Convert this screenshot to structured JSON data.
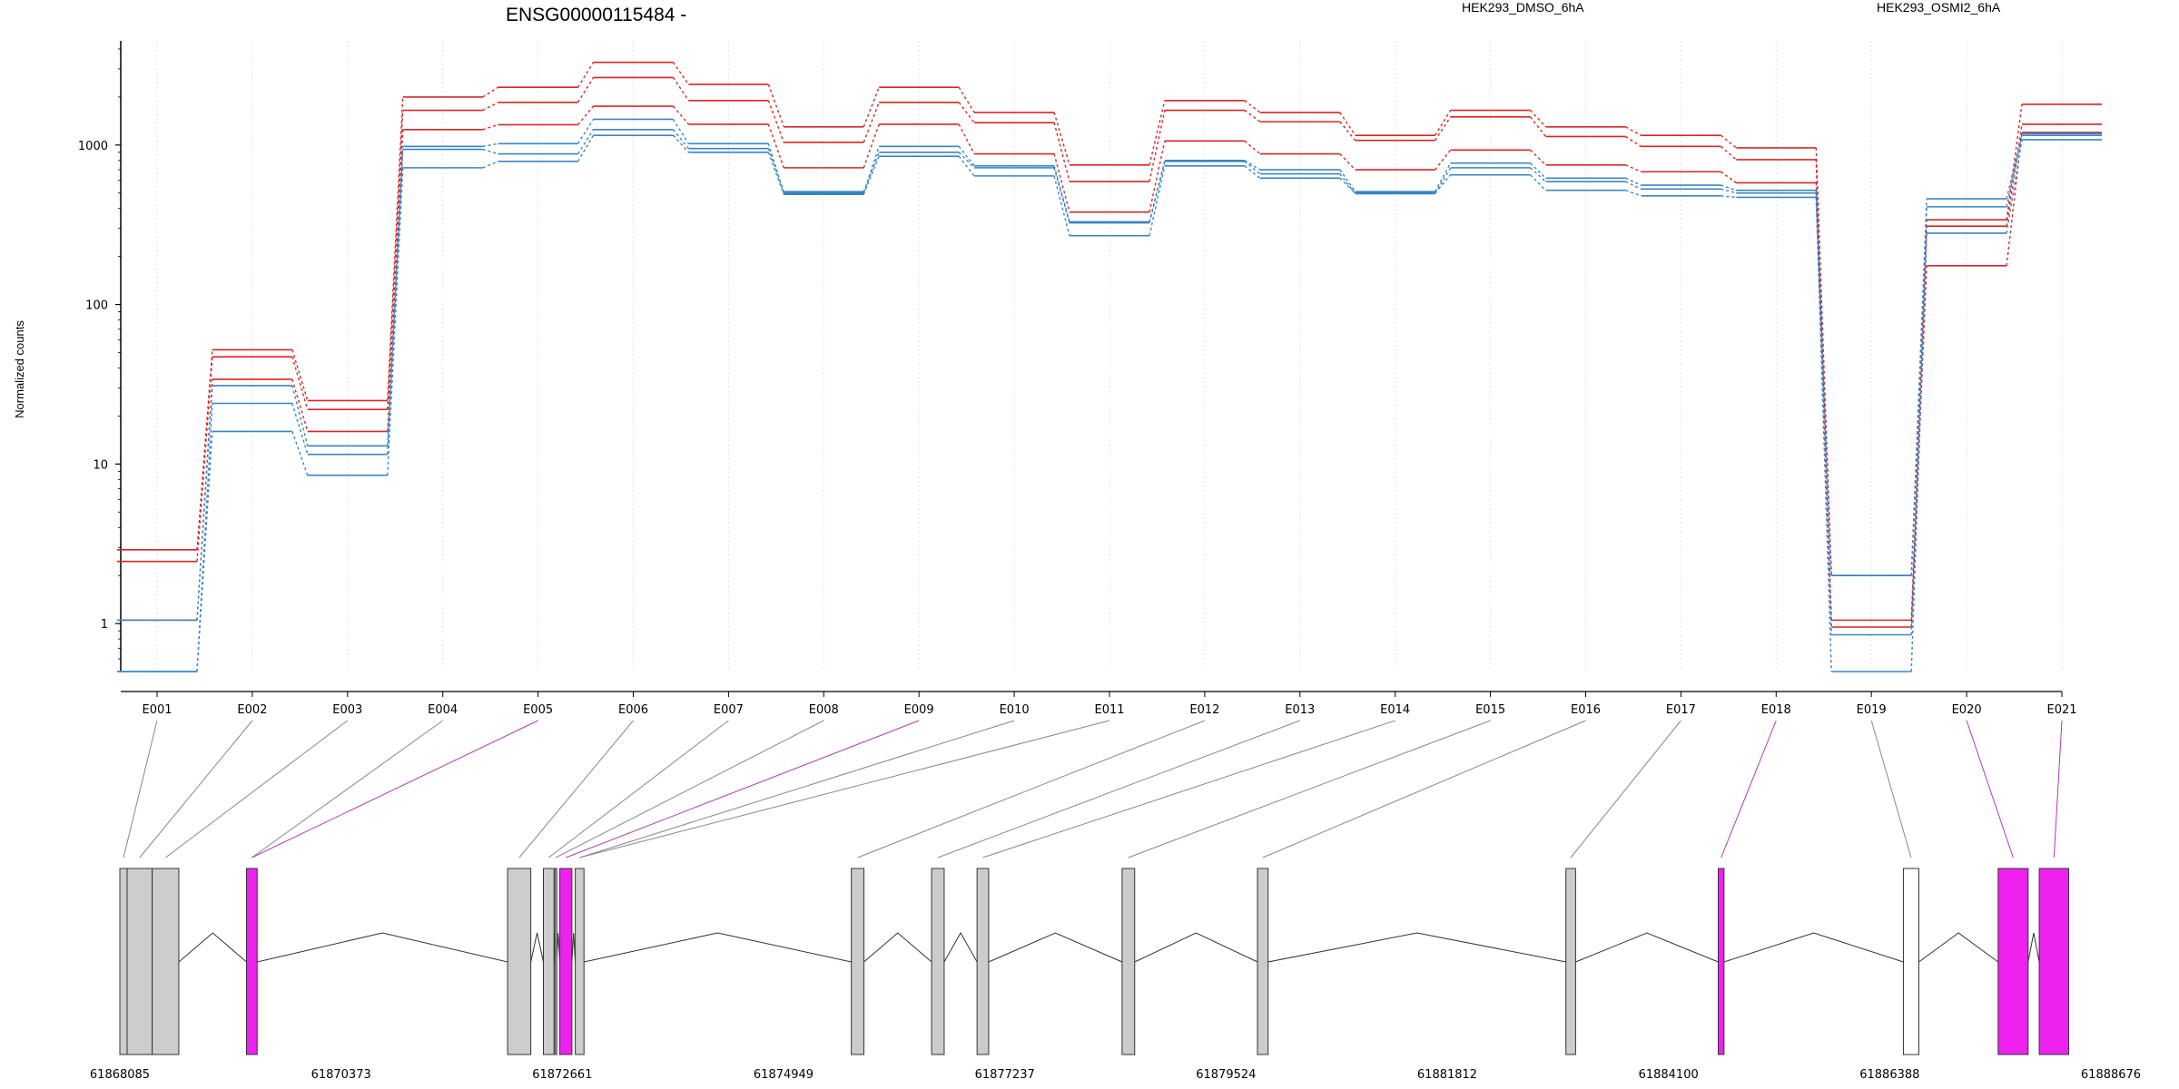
{
  "chart_data": {
    "type": "line",
    "title": "ENSG00000115484 -",
    "ylabel": "Normalized counts",
    "yscale": "log",
    "ylim": [
      0.5,
      4500
    ],
    "yticks": [
      1,
      10,
      100,
      1000
    ],
    "ytick_labels": [
      "1",
      "10",
      "100",
      "1000"
    ],
    "grid": "vertical dotted",
    "legend_placement": "top",
    "categories": [
      "E001",
      "E002",
      "E003",
      "E004",
      "E005",
      "E006",
      "E007",
      "E008",
      "E009",
      "E010",
      "E011",
      "E012",
      "E013",
      "E014",
      "E015",
      "E016",
      "E017",
      "E018",
      "E019",
      "E020",
      "E021"
    ],
    "series": [
      {
        "name": "HEK293_DMSO_6hA",
        "color": "#d62728",
        "values": [
          2.9,
          52,
          25,
          2000,
          2300,
          3300,
          2400,
          1300,
          2300,
          1600,
          750,
          1900,
          1600,
          1150,
          1650,
          1300,
          1150,
          960,
          2.0,
          340,
          1800
        ]
      },
      {
        "name": "HEK293_DMSO_6hA",
        "color": "#d62728",
        "values": [
          2.45,
          47,
          22,
          1650,
          1850,
          2650,
          1900,
          1040,
          1850,
          1380,
          590,
          1650,
          1400,
          1070,
          1500,
          1130,
          980,
          810,
          1.05,
          310,
          1350
        ]
      },
      {
        "name": "HEK293_DMSO_6hA",
        "color": "#d62728",
        "values": [
          1.05,
          34,
          16,
          1250,
          1340,
          1750,
          1350,
          720,
          1350,
          880,
          380,
          1060,
          880,
          700,
          930,
          750,
          680,
          580,
          0.95,
          175,
          1200
        ]
      },
      {
        "name": "HEK293_OSMI2_6hA",
        "color": "#3a84c4",
        "values": [
          1.05,
          31,
          13,
          980,
          1020,
          1450,
          1020,
          500,
          980,
          740,
          330,
          800,
          700,
          510,
          770,
          620,
          560,
          520,
          2.0,
          460,
          1180
        ]
      },
      {
        "name": "HEK293_OSMI2_6hA",
        "color": "#3a84c4",
        "values": [
          0.5,
          24,
          11.5,
          940,
          880,
          1250,
          950,
          510,
          900,
          720,
          325,
          790,
          660,
          495,
          720,
          590,
          530,
          500,
          0.85,
          410,
          1150
        ]
      },
      {
        "name": "HEK293_OSMI2_6hA",
        "color": "#3a84c4",
        "values": [
          0.5,
          16,
          8.5,
          720,
          790,
          1150,
          900,
          490,
          850,
          640,
          270,
          740,
          620,
          500,
          650,
          520,
          480,
          470,
          0.5,
          280,
          1080
        ]
      }
    ],
    "exon_track": {
      "coord_range": [
        61868085,
        61888676
      ],
      "coord_labels": [
        "61868085",
        "61870373",
        "61872661",
        "61874949",
        "61877237",
        "61879524",
        "61881812",
        "61884100",
        "61886388",
        "61888676"
      ],
      "exons": [
        {
          "start": 61868085,
          "end": 61868160,
          "color": "#cccccc"
        },
        {
          "start": 61868160,
          "end": 61868420,
          "color": "#cccccc"
        },
        {
          "start": 61868420,
          "end": 61868695,
          "color": "#cccccc"
        },
        {
          "start": 61869395,
          "end": 61869505,
          "color": "#ee22ee"
        },
        {
          "start": 61872095,
          "end": 61872335,
          "color": "#cccccc"
        },
        {
          "start": 61872465,
          "end": 61872575,
          "color": "#cccccc"
        },
        {
          "start": 61872585,
          "end": 61872600,
          "color": "#cccccc"
        },
        {
          "start": 61872635,
          "end": 61872760,
          "color": "#ee22ee"
        },
        {
          "start": 61872795,
          "end": 61872885,
          "color": "#cccccc"
        },
        {
          "start": 61875650,
          "end": 61875780,
          "color": "#cccccc"
        },
        {
          "start": 61876480,
          "end": 61876610,
          "color": "#cccccc"
        },
        {
          "start": 61876950,
          "end": 61877070,
          "color": "#cccccc"
        },
        {
          "start": 61878450,
          "end": 61878580,
          "color": "#cccccc"
        },
        {
          "start": 61879850,
          "end": 61879960,
          "color": "#cccccc"
        },
        {
          "start": 61883040,
          "end": 61883140,
          "color": "#cccccc"
        },
        {
          "start": 61884615,
          "end": 61884675,
          "color": "#ee22ee"
        },
        {
          "start": 61886530,
          "end": 61886690,
          "color": "#ffffff"
        },
        {
          "start": 61887510,
          "end": 61887820,
          "color": "#ee22ee"
        },
        {
          "start": 61887935,
          "end": 61888240,
          "color": "#ee22ee"
        }
      ]
    }
  }
}
